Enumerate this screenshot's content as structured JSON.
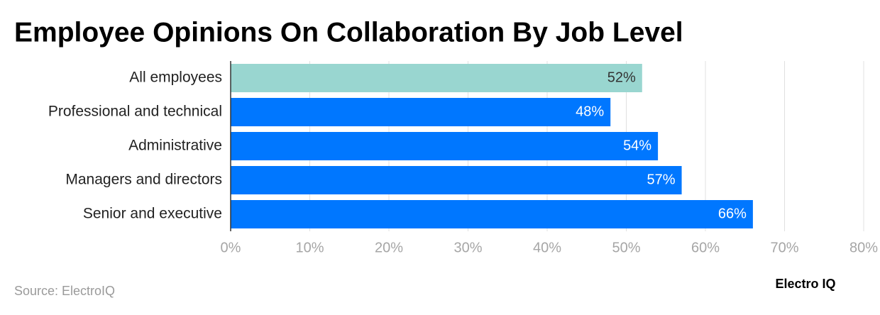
{
  "chart_data": {
    "type": "hbar",
    "title": "Employee Opinions On Collaboration By Job Level",
    "categories": [
      "All employees",
      "Professional and technical",
      "Administrative",
      "Managers and directors",
      "Senior and executive"
    ],
    "values": [
      52,
      48,
      54,
      57,
      66
    ],
    "value_labels": [
      "52%",
      "48%",
      "54%",
      "57%",
      "66%"
    ],
    "colors": [
      "#99d6d0",
      "#0077ff",
      "#0077ff",
      "#0077ff",
      "#0077ff"
    ],
    "label_colors": [
      "#333333",
      "#ffffff",
      "#ffffff",
      "#ffffff",
      "#ffffff"
    ],
    "xlim": [
      0,
      80
    ],
    "xticks": [
      {
        "value": 0,
        "label": "0%"
      },
      {
        "value": 10,
        "label": "10%"
      },
      {
        "value": 20,
        "label": "20%"
      },
      {
        "value": 30,
        "label": "30%"
      },
      {
        "value": 40,
        "label": "40%"
      },
      {
        "value": 50,
        "label": "50%"
      },
      {
        "value": 60,
        "label": "60%"
      },
      {
        "value": 70,
        "label": "70%"
      },
      {
        "value": 80,
        "label": "80%"
      }
    ],
    "grid": true,
    "source": "Source: ElectroIQ",
    "brand": "Electro IQ"
  }
}
